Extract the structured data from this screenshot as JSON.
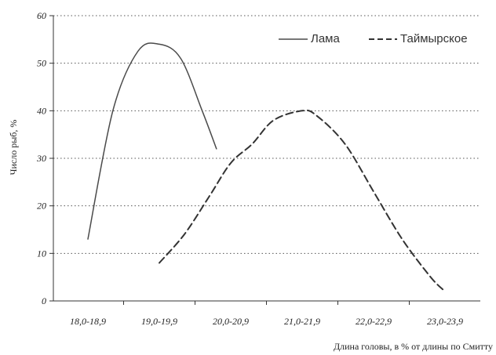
{
  "chart_data": {
    "type": "line",
    "categories": [
      "18,0-18,9",
      "19,0-19,9",
      "20,0-20,9",
      "21,0-21,9",
      "22,0-22,9",
      "23,0-23,9"
    ],
    "series": [
      {
        "name": "Лама",
        "x": [
          0,
          0.35,
          0.7,
          1.0,
          1.3,
          1.6,
          1.8
        ],
        "y": [
          13,
          40,
          52.5,
          54,
          51,
          40,
          32
        ],
        "color": "#4a4a4a",
        "dash": "solid"
      },
      {
        "name": "Таймырское",
        "x": [
          1,
          1.35,
          1.7,
          2.0,
          2.3,
          2.6,
          3.0,
          3.2,
          3.6,
          4.0,
          4.4,
          4.8,
          5.0
        ],
        "y": [
          8,
          14,
          22,
          29,
          33,
          38,
          40,
          39,
          33,
          23,
          13,
          5,
          2
        ],
        "color": "#333333",
        "dash": "dashed"
      }
    ],
    "ylabel": "Число рыб, %",
    "xlabel": "Длина головы, в % от длины по Смитту",
    "ylim": [
      0,
      60
    ],
    "yticks": [
      0,
      10,
      20,
      30,
      40,
      50,
      60
    ],
    "grid": "horizontal dotted",
    "legend_position": "top-right"
  }
}
